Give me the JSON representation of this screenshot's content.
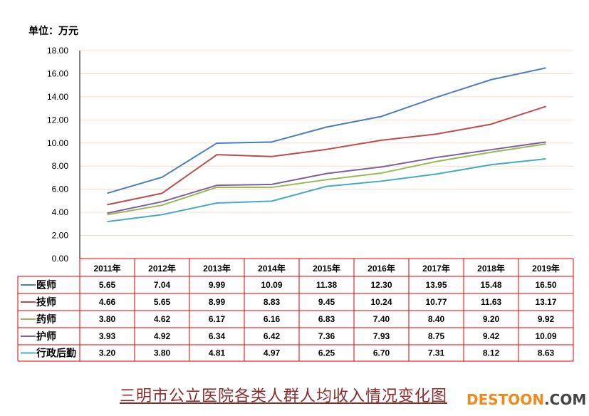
{
  "chart_data": {
    "type": "line",
    "unit_label": "单位：万元",
    "title": "三明市公立医院各类人群人均收入情况变化图",
    "categories": [
      "2011年",
      "2012年",
      "2013年",
      "2014年",
      "2015年",
      "2016年",
      "2017年",
      "2018年",
      "2019年"
    ],
    "ylim": [
      0,
      18
    ],
    "yticks": [
      "0.00",
      "2.00",
      "4.00",
      "6.00",
      "8.00",
      "10.00",
      "12.00",
      "14.00",
      "16.00",
      "18.00"
    ],
    "grid": true,
    "legend": "data-table-below",
    "series": [
      {
        "name": "医师",
        "color": "#4a7ebb",
        "values": [
          5.65,
          7.04,
          9.99,
          10.09,
          11.38,
          12.3,
          13.95,
          15.48,
          16.5
        ]
      },
      {
        "name": "技师",
        "color": "#be4b48",
        "values": [
          4.66,
          5.65,
          8.99,
          8.83,
          9.45,
          10.24,
          10.77,
          11.63,
          13.17
        ]
      },
      {
        "name": "药师",
        "color": "#98b954",
        "values": [
          3.8,
          4.62,
          6.17,
          6.16,
          6.83,
          7.4,
          8.4,
          9.2,
          9.92
        ]
      },
      {
        "name": "护师",
        "color": "#7d60a0",
        "values": [
          3.93,
          4.92,
          6.34,
          6.42,
          7.36,
          7.93,
          8.75,
          9.42,
          10.09
        ]
      },
      {
        "name": "行政后勤",
        "color": "#46aac5",
        "values": [
          3.2,
          3.8,
          4.81,
          4.97,
          6.25,
          6.7,
          7.31,
          8.12,
          8.63
        ]
      }
    ]
  },
  "watermark": {
    "a": "DESTOON",
    "b": ".COM"
  }
}
